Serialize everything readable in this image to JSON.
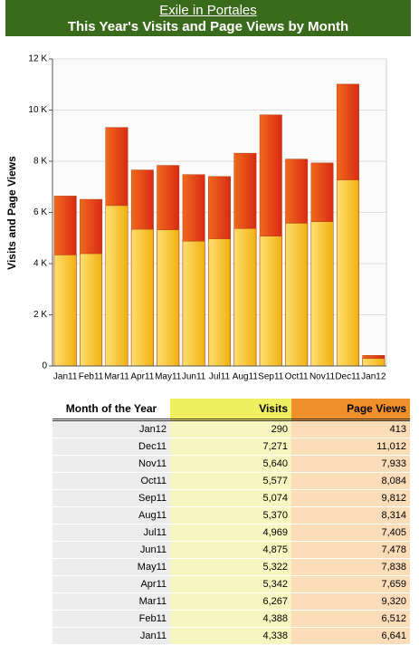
{
  "header": {
    "title": "Exile in Portales",
    "subtitle": "This Year's Visits and Page Views by Month"
  },
  "chart_data": {
    "type": "bar",
    "y_label": "Visits and Page Views",
    "categories": [
      "Jan11",
      "Feb11",
      "Mar11",
      "Apr11",
      "May11",
      "Jun11",
      "Jul11",
      "Aug11",
      "Sep11",
      "Oct11",
      "Nov11",
      "Dec11",
      "Jan12"
    ],
    "series": [
      {
        "name": "Page Views",
        "color": "#e83a1a",
        "values": [
          6641,
          6512,
          9320,
          7659,
          7838,
          7478,
          7405,
          8314,
          9812,
          8084,
          7933,
          11012,
          413
        ]
      },
      {
        "name": "Visits",
        "color": "#f6c21c",
        "values": [
          4338,
          4388,
          6267,
          5342,
          5322,
          4875,
          4969,
          5370,
          5074,
          5577,
          5640,
          7271,
          290
        ]
      }
    ],
    "ylim": [
      0,
      12000
    ],
    "yticks": [
      0,
      {
        "value": 2000,
        "label": "2 K"
      },
      {
        "value": 4000,
        "label": "4 K"
      },
      {
        "value": 6000,
        "label": "6 K"
      },
      {
        "value": 8000,
        "label": "8 K"
      },
      {
        "value": 10000,
        "label": "10 K"
      },
      {
        "value": 12000,
        "label": "12 K"
      }
    ],
    "grid": true
  },
  "table": {
    "header": [
      "Month of the Year",
      "Visits",
      "Page Views"
    ],
    "rows": [
      [
        "Jan12",
        "290",
        "413"
      ],
      [
        "Dec11",
        "7,271",
        "11,012"
      ],
      [
        "Nov11",
        "5,640",
        "7,933"
      ],
      [
        "Oct11",
        "5,577",
        "8,084"
      ],
      [
        "Sep11",
        "5,074",
        "9,812"
      ],
      [
        "Aug11",
        "5,370",
        "8,314"
      ],
      [
        "Jul11",
        "4,969",
        "7,405"
      ],
      [
        "Jun11",
        "4,875",
        "7,478"
      ],
      [
        "May11",
        "5,322",
        "7,838"
      ],
      [
        "Apr11",
        "5,342",
        "7,659"
      ],
      [
        "Mar11",
        "6,267",
        "9,320"
      ],
      [
        "Feb11",
        "4,388",
        "6,512"
      ],
      [
        "Jan11",
        "4,338",
        "6,641"
      ]
    ]
  }
}
